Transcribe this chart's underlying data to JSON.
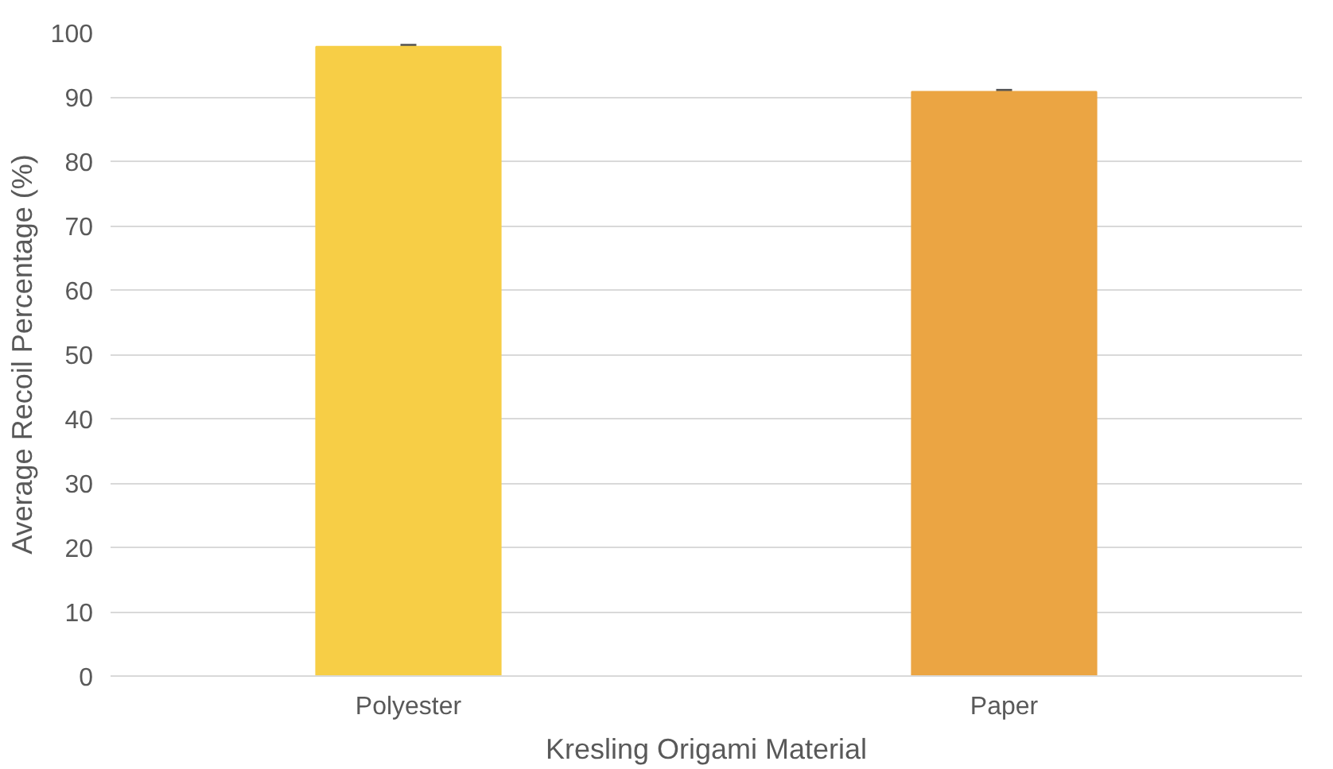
{
  "chart_data": {
    "type": "bar",
    "xlabel": "Kresling Origami Material",
    "ylabel": "Average Recoil Percentage (%)",
    "categories": [
      "Polyester",
      "Paper"
    ],
    "values": [
      97.8,
      90.8
    ],
    "colors": [
      "#f7ce46",
      "#eba543"
    ],
    "errors": [
      0.2,
      0.2
    ],
    "ylim": [
      0,
      100
    ],
    "yticks": [
      0,
      10,
      20,
      30,
      40,
      50,
      60,
      70,
      80,
      90,
      100
    ],
    "grid": "y"
  }
}
